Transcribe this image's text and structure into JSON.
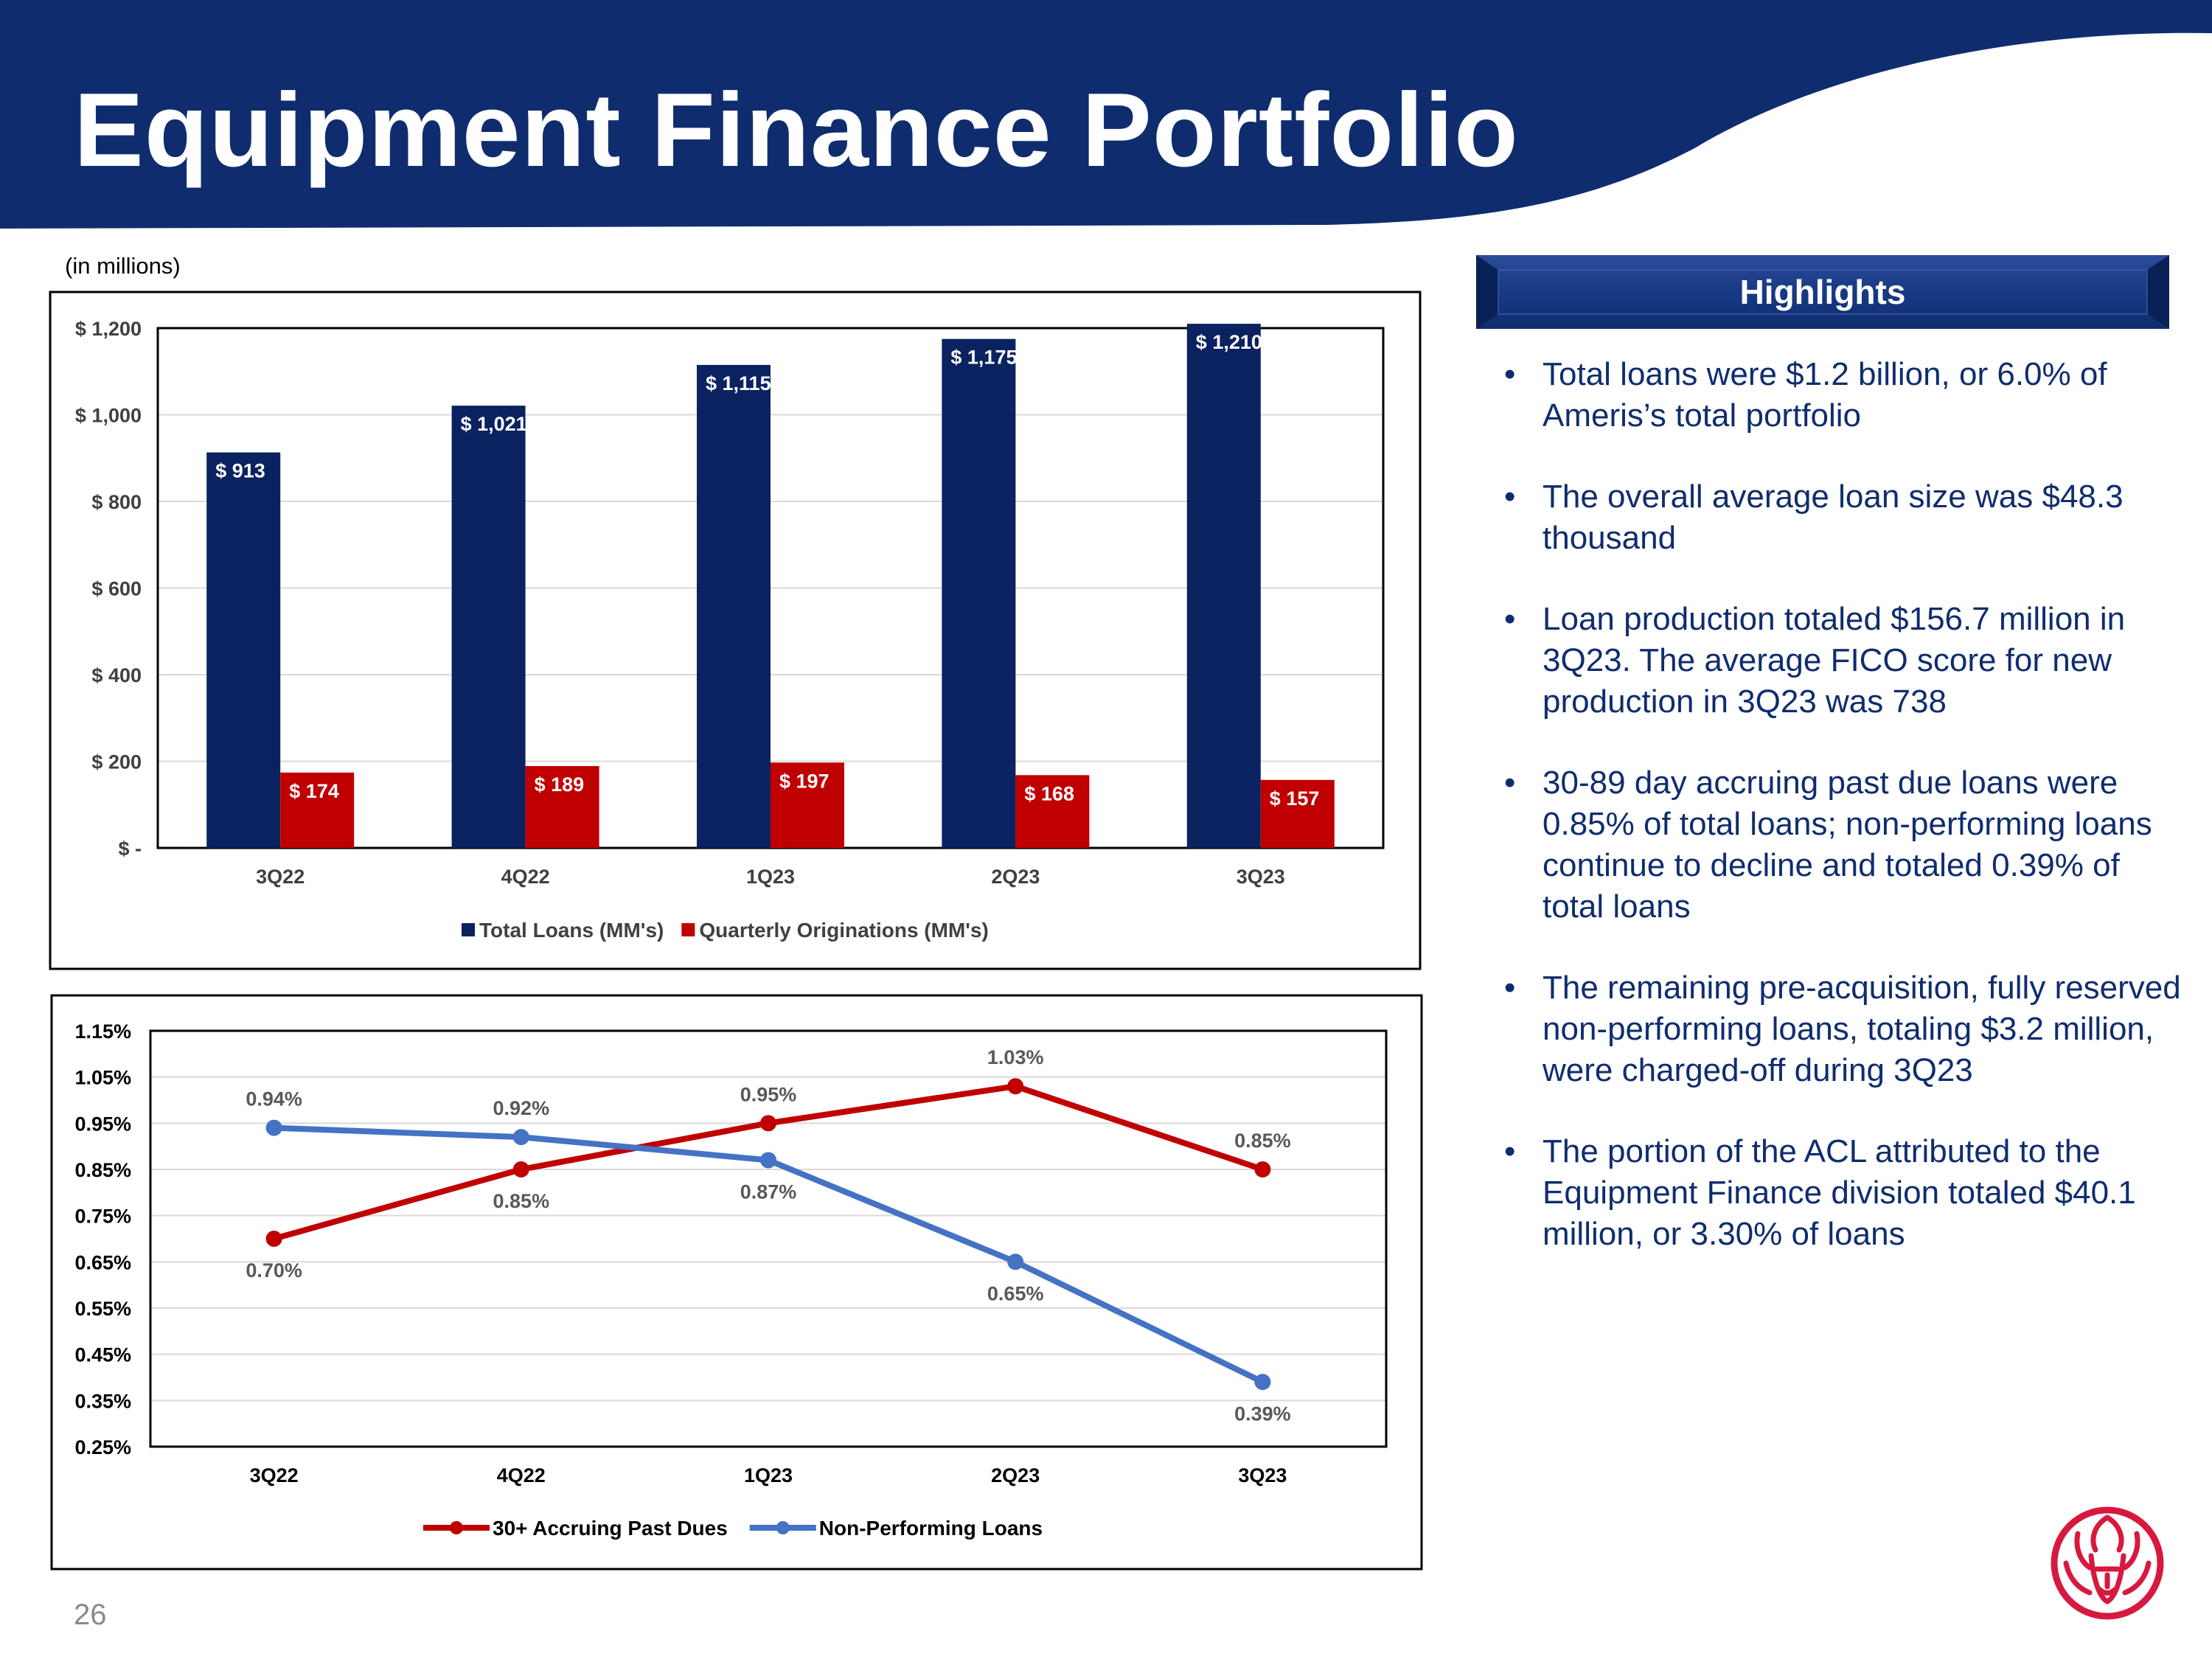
{
  "title": "Equipment Finance Portfolio",
  "units_note": "(in millions)",
  "highlights": {
    "heading": "Highlights",
    "bullets": [
      "Total loans were $1.2 billion, or 6.0% of Ameris’s total portfolio",
      "The overall average loan size was $48.3 thousand",
      "Loan production totaled $156.7 million in 3Q23.  The average FICO score for new production in 3Q23 was 738",
      "30-89 day accruing past due loans were 0.85% of total loans; non-performing loans continue to decline and totaled 0.39% of total loans",
      "The remaining pre-acquisition, fully reserved non-performing loans, totaling $3.2 million, were charged-off during 3Q23",
      "The portion of the ACL attributed to the Equipment Finance division totaled $40.1 million, or 3.30% of loans"
    ]
  },
  "page_number": "26",
  "colors": {
    "navy": "#0f2d6e",
    "bar_navy": "#0b2260",
    "bar_red": "#c00000",
    "line_red": "#c00000",
    "line_blue": "#4472c4",
    "logo_red": "#d7193f"
  },
  "icons": {
    "logo": "lion-logo-icon"
  },
  "chart_data": [
    {
      "type": "bar",
      "categories": [
        "3Q22",
        "4Q22",
        "1Q23",
        "2Q23",
        "3Q23"
      ],
      "series": [
        {
          "name": "Total Loans (MM's)",
          "values": [
            913,
            1021,
            1115,
            1175,
            1210
          ],
          "labels": [
            "$ 913",
            "$ 1,021",
            "$ 1,115",
            "$ 1,175",
            "$ 1,210"
          ],
          "color": "#0b2260"
        },
        {
          "name": "Quarterly Originations (MM's)",
          "values": [
            174,
            189,
            197,
            168,
            157
          ],
          "labels": [
            "$ 174",
            "$ 189",
            "$ 197",
            "$ 168",
            "$ 157"
          ],
          "color": "#c00000"
        }
      ],
      "ylim": [
        0,
        1200
      ],
      "yticks": [
        0,
        200,
        400,
        600,
        800,
        1000,
        1200
      ],
      "ytick_labels": [
        "$ -",
        "$ 200",
        "$ 400",
        "$ 600",
        "$ 800",
        "$ 1,000",
        "$ 1,200"
      ],
      "grid": true,
      "legend": "bottom"
    },
    {
      "type": "line",
      "categories": [
        "3Q22",
        "4Q22",
        "1Q23",
        "2Q23",
        "3Q23"
      ],
      "series": [
        {
          "name": "30+ Accruing Past Dues",
          "values": [
            0.7,
            0.85,
            0.95,
            1.03,
            0.85
          ],
          "labels": [
            "0.70%",
            "0.85%",
            "0.95%",
            "1.03%",
            "0.85%"
          ],
          "color": "#c00000"
        },
        {
          "name": "Non-Performing Loans",
          "values": [
            0.94,
            0.92,
            0.87,
            0.65,
            0.39
          ],
          "labels": [
            "0.94%",
            "0.92%",
            "0.87%",
            "0.65%",
            "0.39%"
          ],
          "color": "#4472c4"
        }
      ],
      "ylim": [
        0.25,
        1.15
      ],
      "yticks": [
        0.25,
        0.35,
        0.45,
        0.55,
        0.65,
        0.75,
        0.85,
        0.95,
        1.05,
        1.15
      ],
      "ytick_labels": [
        "0.25%",
        "0.35%",
        "0.45%",
        "0.55%",
        "0.65%",
        "0.75%",
        "0.85%",
        "0.95%",
        "1.05%",
        "1.15%"
      ],
      "grid": true,
      "legend": "bottom"
    }
  ]
}
